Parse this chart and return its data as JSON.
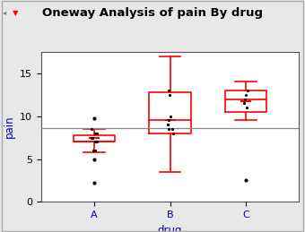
{
  "title": "Oneway Analysis of pain By drug",
  "xlabel": "drug",
  "ylabel": "pain",
  "categories": [
    "A",
    "B",
    "C"
  ],
  "box_data": {
    "A": {
      "whislo": 5.8,
      "q1": 7.0,
      "med": 7.0,
      "mean": 7.5,
      "q3": 7.75,
      "whishi": 8.5,
      "fliers": [
        2.2,
        5.0,
        9.8
      ]
    },
    "B": {
      "whislo": 3.5,
      "q1": 8.0,
      "med": 9.5,
      "mean": 9.5,
      "q3": 12.75,
      "whishi": 17.0,
      "fliers": []
    },
    "C": {
      "whislo": 9.5,
      "q1": 10.5,
      "med": 12.0,
      "mean": 11.8,
      "q3": 13.0,
      "whishi": 14.0,
      "fliers": [
        2.5
      ]
    }
  },
  "data_points": {
    "A": [
      6.0,
      7.0,
      7.0,
      7.0,
      7.5,
      7.5,
      7.5,
      8.0,
      8.0,
      6.0,
      8.5
    ],
    "B": [
      8.0,
      8.5,
      8.5,
      9.0,
      9.0,
      9.5,
      10.0,
      12.5,
      13.0
    ],
    "C": [
      11.0,
      11.5,
      12.0,
      12.0,
      12.5,
      13.0
    ]
  },
  "grand_mean_line": 8.6,
  "ylim": [
    0,
    17.5
  ],
  "yticks": [
    0,
    5,
    10,
    15
  ],
  "box_color": "#FF0000",
  "median_color": "#FF0000",
  "mean_color": "#FF0000",
  "flier_color": "black",
  "data_point_color": "black",
  "grand_mean_color": "#888888",
  "bg_color": "#E8E8E8",
  "plot_bg_color": "#FFFFFF",
  "title_fontsize": 9.5,
  "axis_fontsize": 8.5,
  "tick_fontsize": 8,
  "label_color": "#0000BB"
}
